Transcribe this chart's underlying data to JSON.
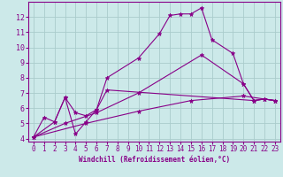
{
  "title": "",
  "xlabel": "Windchill (Refroidissement éolien,°C)",
  "ylabel": "",
  "bg_color": "#cce9e9",
  "grid_color": "#aacccc",
  "line_color": "#880088",
  "xlim": [
    -0.5,
    23.5
  ],
  "ylim": [
    3.8,
    13.0
  ],
  "xticks": [
    0,
    1,
    2,
    3,
    4,
    5,
    6,
    7,
    8,
    9,
    10,
    11,
    12,
    13,
    14,
    15,
    16,
    17,
    18,
    19,
    20,
    21,
    22,
    23
  ],
  "yticks": [
    4,
    5,
    6,
    7,
    8,
    9,
    10,
    11,
    12
  ],
  "series": [
    {
      "x": [
        0,
        1,
        2,
        3,
        4,
        5,
        6,
        7,
        10,
        12,
        13,
        14,
        15,
        16,
        17,
        19,
        20,
        21,
        22,
        23
      ],
      "y": [
        4.1,
        5.4,
        5.1,
        6.7,
        5.7,
        5.5,
        5.9,
        8.0,
        9.3,
        10.9,
        12.1,
        12.2,
        12.2,
        12.6,
        10.5,
        9.6,
        7.6,
        6.5,
        6.6,
        6.5
      ]
    },
    {
      "x": [
        0,
        2,
        3,
        4,
        5,
        6,
        7,
        21,
        22,
        23
      ],
      "y": [
        4.1,
        5.1,
        6.7,
        4.3,
        5.1,
        5.9,
        7.2,
        6.5,
        6.6,
        6.5
      ]
    },
    {
      "x": [
        0,
        3,
        6,
        10,
        16,
        20,
        21,
        22,
        23
      ],
      "y": [
        4.1,
        5.0,
        5.7,
        7.0,
        9.5,
        7.6,
        6.5,
        6.6,
        6.5
      ]
    },
    {
      "x": [
        0,
        5,
        10,
        15,
        20,
        23
      ],
      "y": [
        4.1,
        5.0,
        5.8,
        6.5,
        6.8,
        6.5
      ]
    }
  ]
}
